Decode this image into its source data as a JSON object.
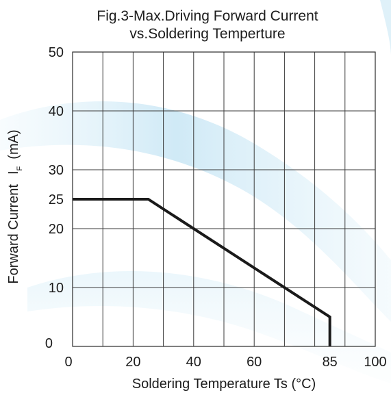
{
  "chart_data": {
    "type": "line",
    "title": [
      "Fig.3-Max.Driving Forward Current",
      "vs.Soldering Temperture"
    ],
    "xlabel": "Soldering Temperature Ts (°C)",
    "ylabel": {
      "prefix": "Forward Current",
      "symbol": "I",
      "subscript": "F",
      "unit": "(mA)"
    },
    "xlim": [
      0,
      100
    ],
    "ylim": [
      0,
      50
    ],
    "x_ticks": [
      0,
      20,
      40,
      60,
      85,
      100
    ],
    "y_ticks": [
      0,
      10,
      20,
      25,
      30,
      40,
      50
    ],
    "x_gridlines": [
      0,
      10,
      20,
      30,
      40,
      50,
      60,
      70,
      80,
      90,
      100
    ],
    "y_gridlines": [
      0,
      10,
      20,
      30,
      40,
      50
    ],
    "grid": true,
    "series": [
      {
        "points": [
          {
            "x": 0,
            "y": 25
          },
          {
            "x": 25,
            "y": 25
          },
          {
            "x": 85,
            "y": 5
          },
          {
            "x": 85,
            "y": 0
          }
        ]
      }
    ],
    "colors": {
      "line": "#1a1a1a",
      "grid": "#3a3a3a",
      "text": "#1c1c1c",
      "background_wave": "#a9d8ef"
    }
  }
}
